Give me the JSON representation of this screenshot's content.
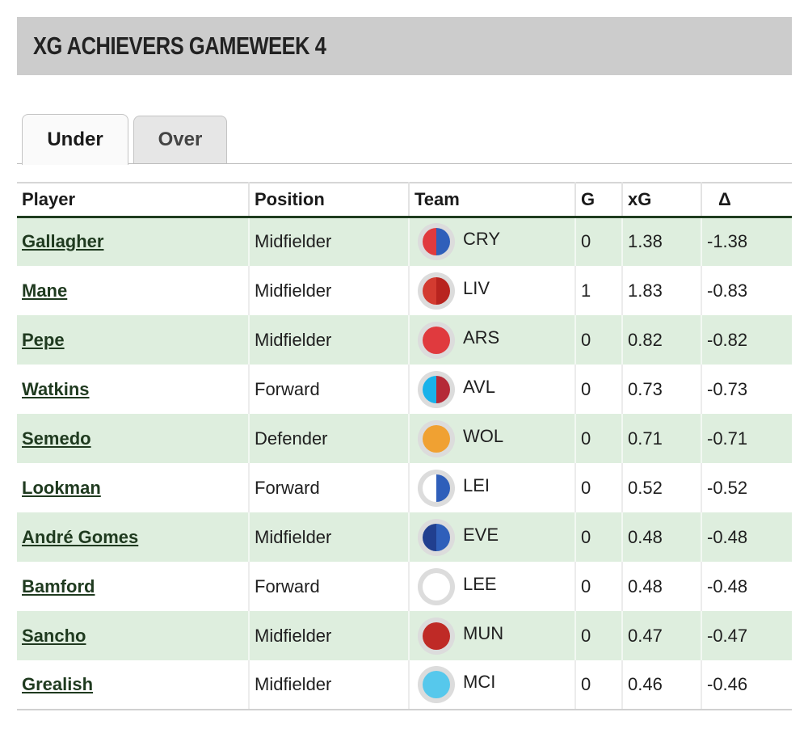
{
  "page": {
    "title": "XG ACHIEVERS GAMEWEEK 4"
  },
  "tabs": [
    {
      "label": "Under",
      "active": true
    },
    {
      "label": "Over",
      "active": false
    }
  ],
  "table": {
    "columns": [
      "Player",
      "Position",
      "Team",
      "G",
      "xG",
      "Δ"
    ],
    "rows": [
      {
        "player": "Gallagher",
        "position": "Midfielder",
        "team": "CRY",
        "g": "0",
        "xg": "1.38",
        "delta": "-1.38"
      },
      {
        "player": "Mane",
        "position": "Midfielder",
        "team": "LIV",
        "g": "1",
        "xg": "1.83",
        "delta": "-0.83"
      },
      {
        "player": "Pepe",
        "position": "Midfielder",
        "team": "ARS",
        "g": "0",
        "xg": "0.82",
        "delta": "-0.82"
      },
      {
        "player": "Watkins",
        "position": "Forward",
        "team": "AVL",
        "g": "0",
        "xg": "0.73",
        "delta": "-0.73"
      },
      {
        "player": "Semedo",
        "position": "Defender",
        "team": "WOL",
        "g": "0",
        "xg": "0.71",
        "delta": "-0.71"
      },
      {
        "player": "Lookman",
        "position": "Forward",
        "team": "LEI",
        "g": "0",
        "xg": "0.52",
        "delta": "-0.52"
      },
      {
        "player": "André Gomes",
        "position": "Midfielder",
        "team": "EVE",
        "g": "0",
        "xg": "0.48",
        "delta": "-0.48"
      },
      {
        "player": "Bamford",
        "position": "Forward",
        "team": "LEE",
        "g": "0",
        "xg": "0.48",
        "delta": "-0.48"
      },
      {
        "player": "Sancho",
        "position": "Midfielder",
        "team": "MUN",
        "g": "0",
        "xg": "0.47",
        "delta": "-0.47"
      },
      {
        "player": "Grealish",
        "position": "Midfielder",
        "team": "MCI",
        "g": "0",
        "xg": "0.46",
        "delta": "-0.46"
      }
    ]
  },
  "team_colors": {
    "CRY": [
      "#e03a3e",
      "#2f5fba"
    ],
    "LIV": [
      "#d33b30",
      "#b8241f"
    ],
    "ARS": [
      "#e03a3e",
      "#e03a3e"
    ],
    "AVL": [
      "#19b2ea",
      "#b52a37"
    ],
    "WOL": [
      "#f0a132",
      "#f0a132"
    ],
    "LEI": [
      "#ffffff",
      "#2f5fba"
    ],
    "EVE": [
      "#213f8f",
      "#2f5fba"
    ],
    "LEE": [
      "#ffffff",
      "#ffffff"
    ],
    "MUN": [
      "#bf2a26",
      "#bf2a26"
    ],
    "MCI": [
      "#56c8ec",
      "#56c8ec"
    ]
  },
  "colors": {
    "row_highlight": "#deeede",
    "header_rule": "#1f3d1f",
    "title_bar": "#cccccc"
  }
}
